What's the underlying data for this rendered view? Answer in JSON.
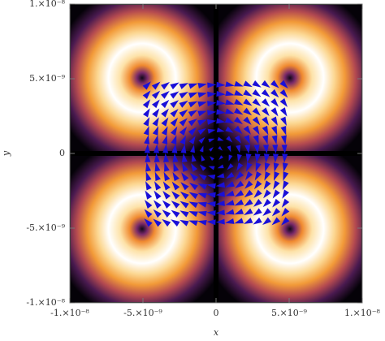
{
  "chart_data": {
    "type": "vector-density",
    "xlabel": "x",
    "ylabel": "y",
    "xlim": [
      -1e-08,
      1e-08
    ],
    "ylim": [
      -1e-08,
      1e-08
    ],
    "xticks": [
      {
        "value": -1e-08,
        "label": "-1.×10⁻⁸"
      },
      {
        "value": -5e-09,
        "label": "-5.×10⁻⁹"
      },
      0,
      {
        "value": 5e-09,
        "label": "5.×10⁻⁹"
      },
      {
        "value": 1e-08,
        "label": "1.×10⁻⁸"
      }
    ],
    "yticks": [
      {
        "value": -1e-08,
        "label": "-1.×10⁻⁸"
      },
      {
        "value": -5e-09,
        "label": "-5.×10⁻⁹"
      },
      0,
      {
        "value": 5e-09,
        "label": "5.×10⁻⁹"
      },
      {
        "value": 1e-08,
        "label": "1.×10⁻⁸"
      }
    ],
    "arrow_color": "#1a10d8"
  }
}
